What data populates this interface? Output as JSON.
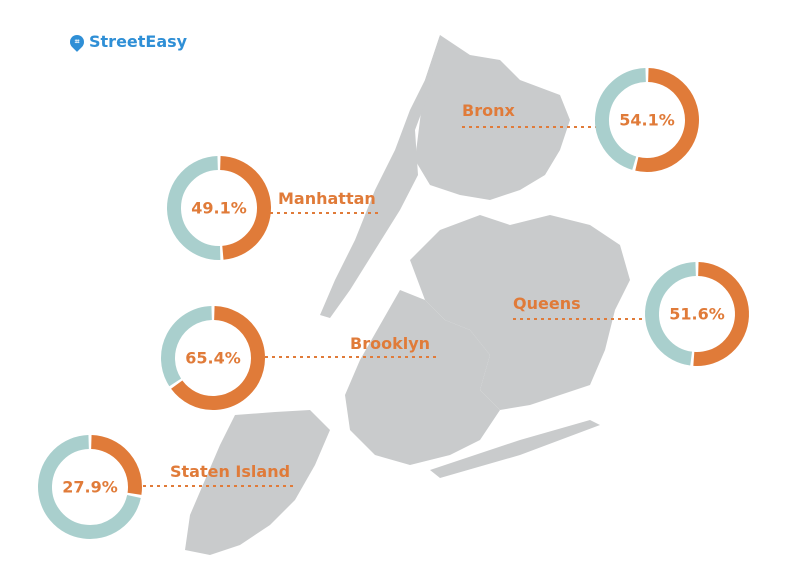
{
  "logo": {
    "text": "StreetEasy",
    "icon": "map-pin-icon",
    "color": "#2f8fd6"
  },
  "colors": {
    "share": "#e07b39",
    "rest": "#a9cfcd",
    "map": "#c9cbcc"
  },
  "chart_data": {
    "type": "pie",
    "variant": "donut",
    "categories": [
      "Bronx",
      "Manhattan",
      "Brooklyn",
      "Queens",
      "Staten Island"
    ],
    "values": [
      54.1,
      49.1,
      65.4,
      51.6,
      27.9
    ],
    "labels": [
      "54.1%",
      "49.1%",
      "65.4%",
      "51.6%",
      "27.9%"
    ],
    "unit": "%"
  }
}
